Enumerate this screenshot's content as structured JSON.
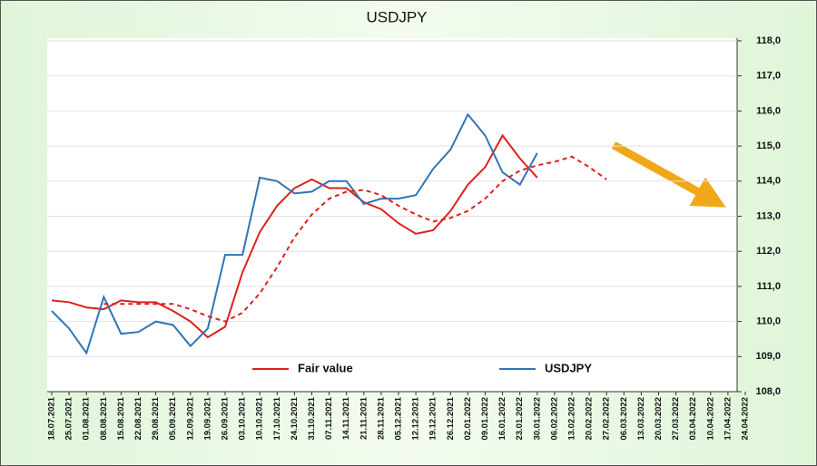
{
  "chart_data": {
    "type": "line",
    "title": "USDJPY",
    "categories": [
      "18.07.2021",
      "25.07.2021",
      "01.08.2021",
      "08.08.2021",
      "15.08.2021",
      "22.08.2021",
      "29.08.2021",
      "05.09.2021",
      "12.09.2021",
      "19.09.2021",
      "26.09.2021",
      "03.10.2021",
      "10.10.2021",
      "17.10.2021",
      "24.10.2021",
      "31.10.2021",
      "07.11.2021",
      "14.11.2021",
      "21.11.2021",
      "28.11.2021",
      "05.12.2021",
      "12.12.2021",
      "19.12.2021",
      "26.12.2021",
      "02.01.2022",
      "09.01.2022",
      "16.01.2022",
      "23.01.2022",
      "30.01.2022",
      "06.02.2022",
      "13.02.2022",
      "20.02.2022",
      "27.02.2022",
      "06.03.2022",
      "13.03.2022",
      "20.03.2022",
      "27.03.2022",
      "03.04.2022",
      "10.04.2022",
      "17.04.2022",
      "24.04.2022"
    ],
    "series": [
      {
        "name": "Fair value",
        "color": "#e0201c",
        "values": [
          110.6,
          110.55,
          110.4,
          110.35,
          110.6,
          110.55,
          110.55,
          110.3,
          110.0,
          109.55,
          109.85,
          111.4,
          112.55,
          113.3,
          113.8,
          114.05,
          113.8,
          113.8,
          113.4,
          113.2,
          112.8,
          112.5,
          112.6,
          113.15,
          113.9,
          114.4,
          115.3,
          114.65,
          114.1,
          null,
          null,
          null,
          null,
          null,
          null,
          null,
          null,
          null,
          null,
          null,
          null
        ]
      },
      {
        "name": "USDJPY",
        "color": "#2e75b6",
        "values": [
          110.3,
          109.8,
          109.1,
          110.7,
          109.65,
          109.7,
          110.0,
          109.9,
          109.3,
          109.8,
          111.9,
          111.9,
          114.1,
          114.0,
          113.65,
          113.7,
          114.0,
          114.0,
          113.35,
          113.5,
          113.5,
          113.6,
          114.35,
          114.9,
          115.9,
          115.3,
          114.25,
          113.9,
          114.8,
          null,
          null,
          null,
          null,
          null,
          null,
          null,
          null,
          null,
          null,
          null,
          null
        ]
      },
      {
        "color": "#e0201c",
        "dashed": true,
        "values": [
          null,
          null,
          null,
          110.5,
          110.5,
          110.5,
          110.5,
          110.5,
          110.35,
          110.15,
          110.0,
          110.25,
          110.8,
          111.55,
          112.4,
          113.05,
          113.5,
          113.7,
          113.75,
          113.6,
          113.3,
          113.05,
          112.85,
          112.95,
          113.15,
          113.5,
          114.0,
          114.3,
          114.45,
          114.55,
          114.7,
          114.4,
          114.05,
          null,
          null,
          null,
          null,
          null,
          null,
          null,
          null
        ]
      }
    ],
    "ylim": [
      108,
      118
    ],
    "yticks": [
      {
        "value": 108,
        "label": "108,0"
      },
      {
        "value": 109,
        "label": "109,0"
      },
      {
        "value": 110,
        "label": "110,0"
      },
      {
        "value": 111,
        "label": "111,0"
      },
      {
        "value": 112,
        "label": "112,0"
      },
      {
        "value": 113,
        "label": "113,0"
      },
      {
        "value": 114,
        "label": "114,0"
      },
      {
        "value": 115,
        "label": "115,0"
      },
      {
        "value": 116,
        "label": "116,0"
      },
      {
        "value": 117,
        "label": "117,0"
      },
      {
        "value": 118,
        "label": "118,0"
      }
    ],
    "grid": true,
    "legend": "bottom"
  }
}
